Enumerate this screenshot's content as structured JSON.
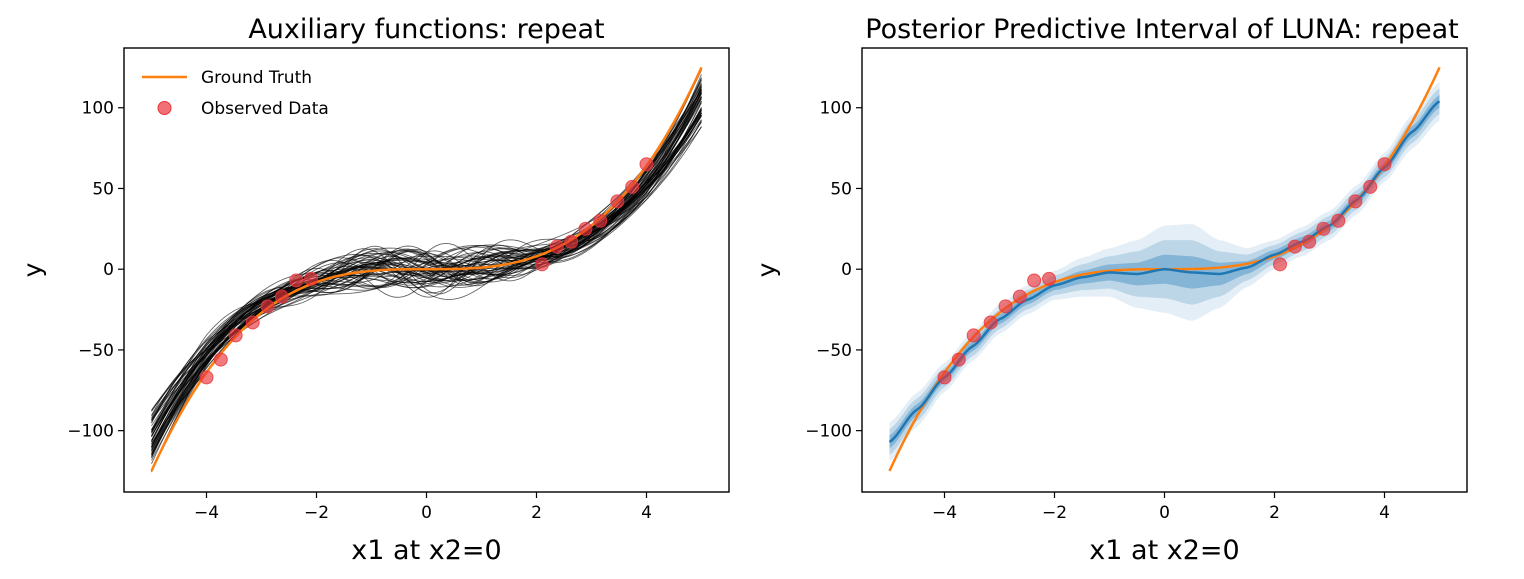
{
  "chart_data": [
    {
      "type": "line",
      "title": "Auxiliary functions: repeat",
      "xlabel": "x1 at x2=0",
      "ylabel": "y",
      "xlim": [
        -5.5,
        5.5
      ],
      "ylim": [
        -138,
        137
      ],
      "xticks": [
        -4,
        -2,
        0,
        2,
        4
      ],
      "yticks": [
        -100,
        -50,
        0,
        50,
        100
      ],
      "legend": {
        "placement": "top-left",
        "entries": [
          "Ground Truth",
          "Observed Data"
        ]
      },
      "series": [
        {
          "name": "Ground Truth",
          "function": "y = x^3",
          "x_range": [
            -5,
            5
          ],
          "color": "#ff7f0e"
        },
        {
          "kind": "auxiliary-functions",
          "count": 60,
          "x_range": [
            -5,
            5
          ],
          "color": "#000000"
        }
      ],
      "observed": {
        "name": "Observed Data",
        "color": "#e8343a",
        "x": [
          -4.0,
          -3.74,
          -3.47,
          -3.16,
          -2.89,
          -2.63,
          -2.37,
          -2.1,
          2.1,
          2.37,
          2.63,
          2.89,
          3.16,
          3.47,
          3.74,
          4.0
        ],
        "y": [
          -67,
          -56,
          -41,
          -33,
          -23,
          -17,
          -7,
          -6,
          3,
          14,
          17,
          25,
          30,
          42,
          51,
          65
        ]
      }
    },
    {
      "type": "area",
      "title": "Posterior Predictive Interval of LUNA: repeat",
      "xlabel": "x1 at x2=0",
      "ylabel": "y",
      "xlim": [
        -5.5,
        5.5
      ],
      "ylim": [
        -138,
        137
      ],
      "xticks": [
        -4,
        -2,
        0,
        2,
        4
      ],
      "yticks": [
        -100,
        -50,
        0,
        50,
        100
      ],
      "series": [
        {
          "kind": "ground-truth",
          "function": "y = x^3",
          "x_range": [
            -5,
            5
          ],
          "color": "#ff7f0e"
        },
        {
          "kind": "posterior-mean",
          "color": "#1f77b4",
          "x": [
            -5,
            -4.5,
            -4,
            -3.5,
            -3,
            -2.5,
            -2,
            -1.5,
            -1,
            -0.5,
            0,
            0.5,
            1,
            1.5,
            2,
            2.5,
            3,
            3.5,
            4,
            4.5,
            5
          ],
          "y": [
            -107,
            -87,
            -67,
            -48,
            -31,
            -19,
            -10,
            -5,
            -2,
            -3,
            0,
            -2,
            -3,
            1,
            9,
            17,
            27,
            43,
            63,
            85,
            104
          ],
          "sd": [
            4,
            3.5,
            3,
            3,
            3,
            3,
            3,
            4,
            5,
            7,
            9,
            10,
            7,
            4,
            3,
            3,
            3,
            3,
            3,
            3.5,
            4
          ]
        }
      ],
      "bands_sd": [
        1,
        2,
        3
      ],
      "observed": {
        "color": "#e8343a",
        "x": [
          -4.0,
          -3.74,
          -3.47,
          -3.16,
          -2.89,
          -2.63,
          -2.37,
          -2.1,
          2.1,
          2.37,
          2.63,
          2.89,
          3.16,
          3.47,
          3.74,
          4.0
        ],
        "y": [
          -67,
          -56,
          -41,
          -33,
          -23,
          -17,
          -7,
          -6,
          3,
          14,
          17,
          25,
          30,
          42,
          51,
          65
        ]
      }
    }
  ]
}
